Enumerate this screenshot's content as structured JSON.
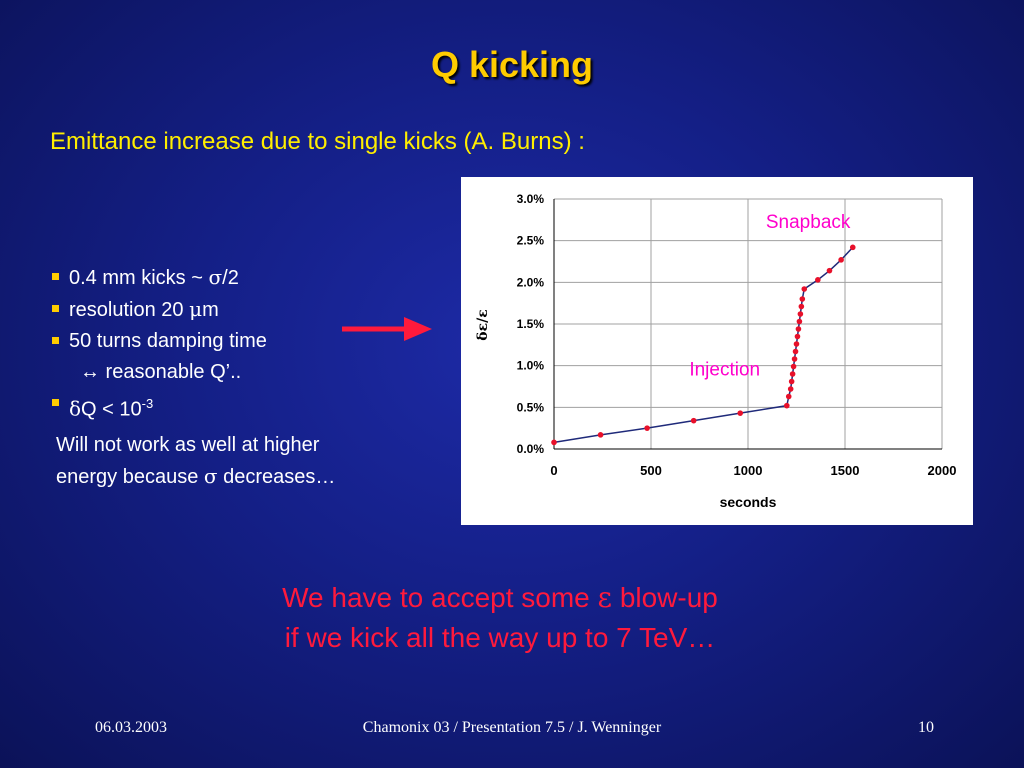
{
  "title": "Q kicking",
  "subtitle": "Emittance increase due to single kicks (A. Burns) :",
  "bullets": {
    "b1_text": "0.4 mm kicks ~ ",
    "b1_sym": "σ",
    "b1_end": "/2",
    "b2_text": "resolution 20 ",
    "b2_sym": "μ",
    "b2_end": "m",
    "b3_text": "50 turns damping time",
    "b3_cont_sym": "↔",
    "b3_cont_text": " reasonable Q’..",
    "b4_sym": "δ",
    "b4_text": "Q < 10",
    "b4_exp": "-3"
  },
  "note": {
    "line1": "Will not work as well at higher",
    "line2_text": "energy because ",
    "line2_sym": "σ",
    "line2_end": " decreases…"
  },
  "conclusion": {
    "line1_text": "We have to accept some ",
    "line1_sym": "ε",
    "line1_end": " blow-up",
    "line2": "if we kick all the way up to 7 TeV…"
  },
  "footer": {
    "date": "06.03.2003",
    "center": "Chamonix 03 / Presentation 7.5 / J. Wenninger",
    "page": "10"
  },
  "colors": {
    "title": "#ffcc00",
    "subtitle": "#ffee00",
    "conclusion": "#ff1a3c",
    "arrow": "#ff1a3c",
    "series_line": "#1f2a7a",
    "series_points": "#e8102a",
    "annotation": "#ff00cc"
  },
  "chart_data": {
    "type": "line",
    "title": "",
    "xlabel": "seconds",
    "ylabel": "δε/ε",
    "xlim": [
      0,
      2000
    ],
    "ylim": [
      0,
      3.0
    ],
    "xticks": [
      "0",
      "500",
      "1000",
      "1500",
      "2000"
    ],
    "yticks": [
      "0.0%",
      "0.5%",
      "1.0%",
      "1.5%",
      "2.0%",
      "2.5%",
      "3.0%"
    ],
    "grid": true,
    "legend": "none",
    "annotations": [
      {
        "text": "Injection",
        "x": 880,
        "y": 0.88
      },
      {
        "text": "Snapback",
        "x": 1310,
        "y": 2.65
      }
    ],
    "series": [
      {
        "x": [
          0,
          240,
          480,
          720,
          960,
          1200,
          1210,
          1220,
          1225,
          1230,
          1235,
          1240,
          1245,
          1250,
          1255,
          1260,
          1265,
          1270,
          1275,
          1280,
          1290,
          1360,
          1420,
          1480,
          1540
        ],
        "y": [
          0.08,
          0.17,
          0.25,
          0.34,
          0.43,
          0.52,
          0.63,
          0.72,
          0.81,
          0.9,
          0.99,
          1.08,
          1.17,
          1.26,
          1.35,
          1.44,
          1.53,
          1.62,
          1.71,
          1.8,
          1.92,
          2.03,
          2.14,
          2.27,
          2.42
        ]
      }
    ]
  }
}
